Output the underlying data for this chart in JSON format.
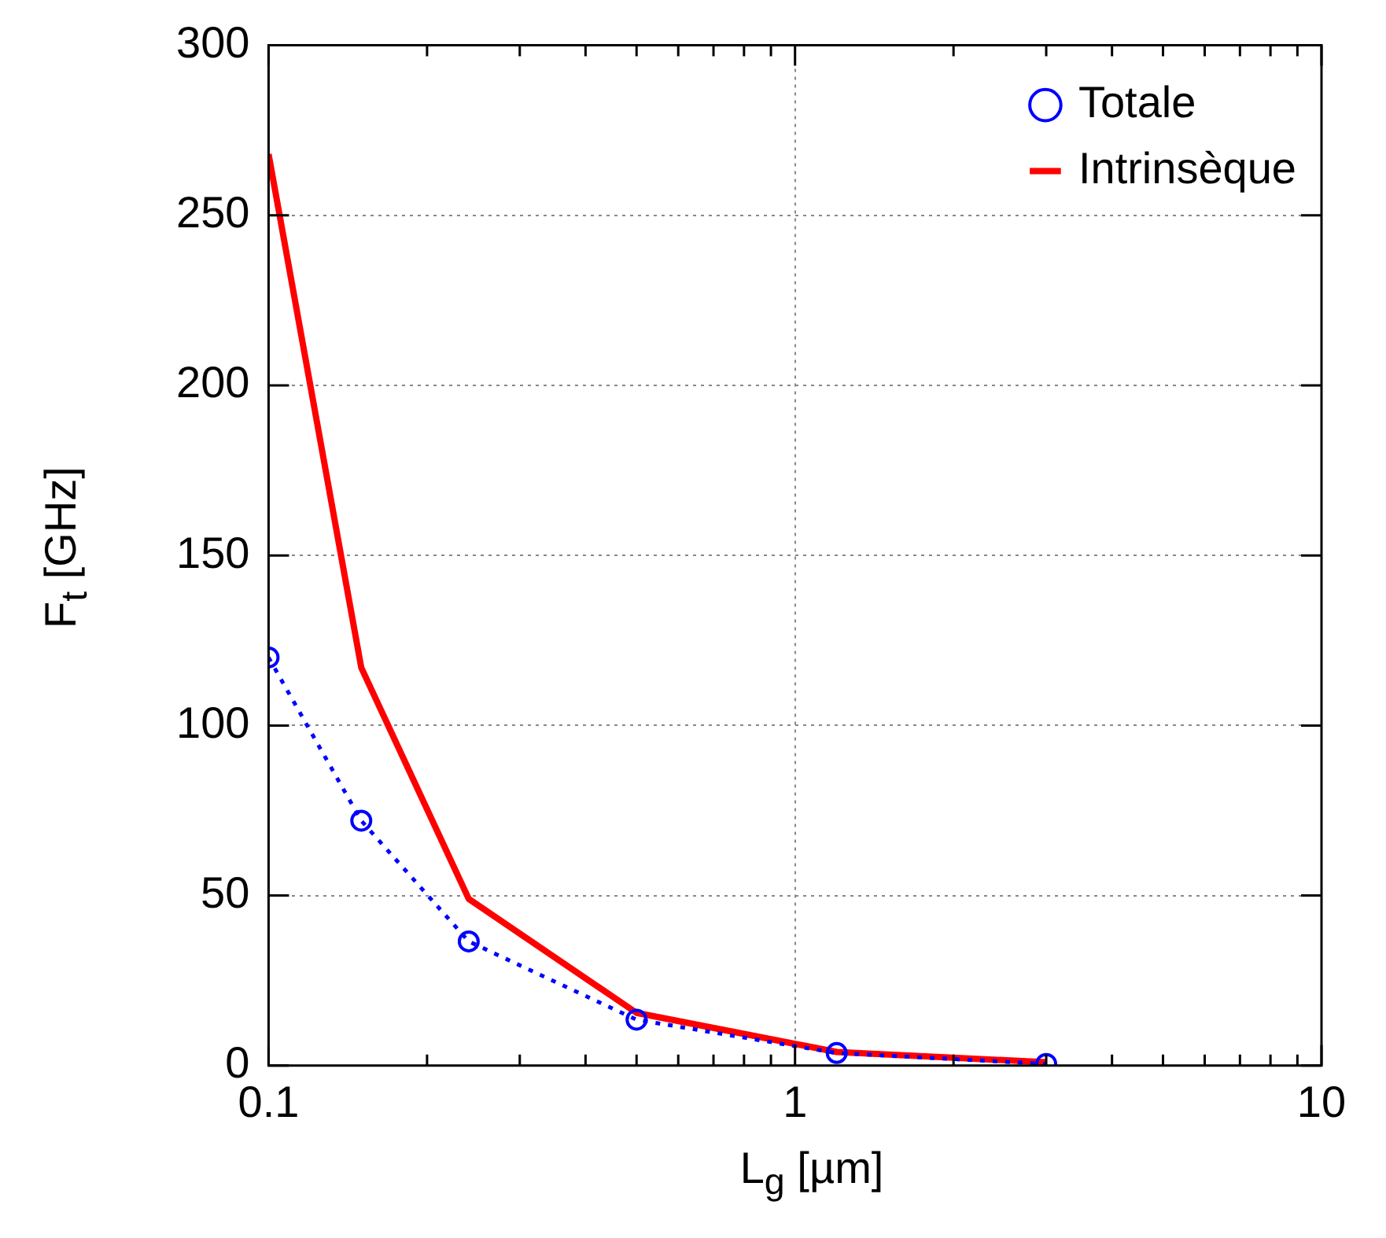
{
  "chart_data": {
    "type": "line",
    "xlabel": "L$_{g}$ [µm]",
    "ylabel": "F$_{t}$ [GHz]",
    "log": "x",
    "grid": true,
    "legend": "top right",
    "x": [
      0.1,
      0.15,
      0.24,
      0.5,
      1.2,
      3
    ],
    "xlim": [
      0.1,
      10
    ],
    "xticks": [
      0.1,
      {
        "value": 0.2,
        "label": null
      },
      {
        "value": 0.3,
        "label": null
      },
      {
        "value": 0.4,
        "label": null
      },
      {
        "value": 0.5,
        "label": null
      },
      {
        "value": 0.6,
        "label": null
      },
      {
        "value": 0.7,
        "label": null
      },
      {
        "value": 0.8,
        "label": null
      },
      {
        "value": 0.9,
        "label": null
      },
      1,
      {
        "value": 2,
        "label": null
      },
      {
        "value": 3,
        "label": null
      },
      {
        "value": 4,
        "label": null
      },
      {
        "value": 5,
        "label": null
      },
      {
        "value": 6,
        "label": null
      },
      {
        "value": 7,
        "label": null
      },
      {
        "value": 8,
        "label": null
      },
      {
        "value": 9,
        "label": null
      },
      10
    ],
    "ylim": [
      0,
      300
    ],
    "yticks": [
      0,
      50,
      100,
      150,
      200,
      250,
      300
    ],
    "series": [
      {
        "name": "Totale",
        "color": "#0000ff",
        "marker": "circle",
        "line_style": "dotted",
        "values": [
          120,
          72,
          36.5,
          13.5,
          3.7,
          0.5
        ]
      },
      {
        "name": "Intrinsèque",
        "color": "#ff0000",
        "marker": "none",
        "line_style": "solid",
        "values": [
          268,
          117,
          49,
          15.5,
          4,
          1
        ]
      }
    ]
  }
}
